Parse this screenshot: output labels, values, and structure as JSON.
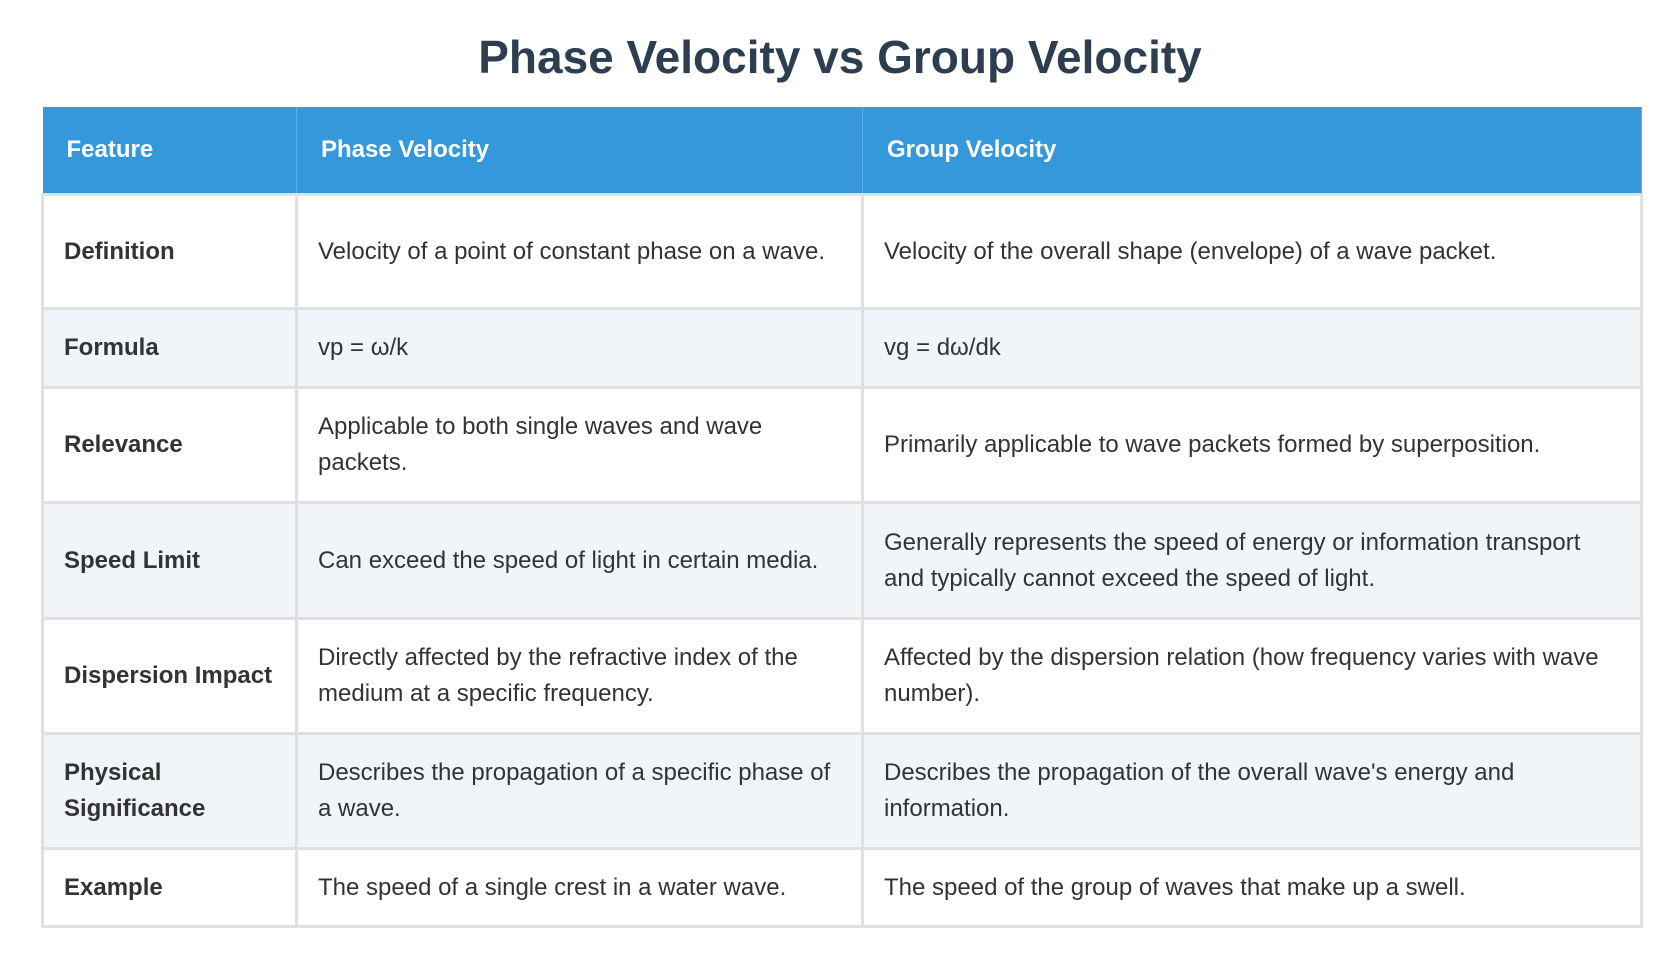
{
  "title": "Phase Velocity vs Group Velocity",
  "headers": [
    "Feature",
    "Phase Velocity",
    "Group Velocity"
  ],
  "rows": [
    [
      "Definition",
      "Velocity of a point of constant phase on a wave.",
      "Velocity of the overall shape (envelope) of a wave packet."
    ],
    [
      "Formula",
      "vp = ω/k",
      "vg = dω/dk"
    ],
    [
      "Relevance",
      "Applicable to both single waves and wave packets.",
      "Primarily applicable to wave packets formed by superposition."
    ],
    [
      "Speed Limit",
      "Can exceed the speed of light in certain media.",
      "Generally represents the speed of energy or information transport and typically cannot exceed the speed of light."
    ],
    [
      "Dispersion Impact",
      "Directly affected by the refractive index of the medium at a specific frequency.",
      "Affected by the dispersion relation (how frequency varies with wave number)."
    ],
    [
      "Physical Significance",
      "Describes the propagation of a specific phase of a wave.",
      "Describes the propagation of the overall wave's energy and information."
    ],
    [
      "Example",
      "The speed of a single crest in a water wave.",
      "The speed of the group of waves that make up a swell."
    ]
  ],
  "colors": {
    "header": "#3498db",
    "title": "#2c3e50",
    "alt_row": "#f1f5fa"
  }
}
